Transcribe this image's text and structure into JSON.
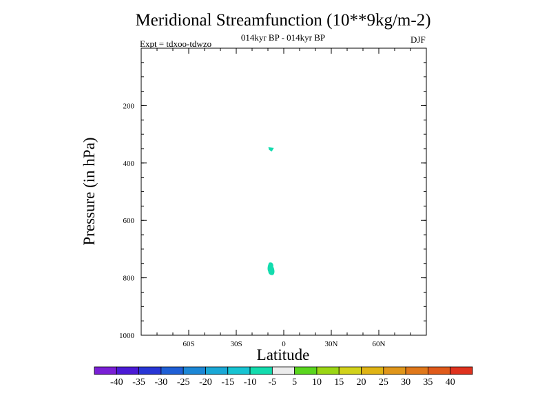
{
  "header": {
    "title": "Meridional Streamfunction (10**9kg/m-2)",
    "subtitle": "014kyr BP - 014kyr BP",
    "experiment": "Expt = tdxoo-tdwzo",
    "season": "DJF"
  },
  "chart_data": {
    "type": "contour",
    "xlabel": "Latitude",
    "ylabel": "Pressure (in hPa)",
    "xlim": [
      -90,
      90
    ],
    "ylim": [
      1000,
      0
    ],
    "x_ticks": [
      -60,
      -30,
      0,
      30,
      60
    ],
    "x_tick_labels": [
      "60S",
      "30S",
      "0",
      "30N",
      "60N"
    ],
    "y_ticks": [
      200,
      400,
      600,
      800,
      1000
    ],
    "y_tick_labels": [
      "200",
      "400",
      "600",
      "800",
      "1000"
    ],
    "contour_levels": [
      -40,
      -35,
      -30,
      -25,
      -20,
      -15,
      -10,
      -5,
      5,
      10,
      15,
      20,
      25,
      30,
      35,
      40
    ],
    "colorbar_colors": [
      "#7a1fd6",
      "#4b1ad6",
      "#2836d6",
      "#1f5fd6",
      "#1c87d6",
      "#1aa8d6",
      "#17c4d2",
      "#13dcae",
      "#ececec",
      "#5ad61e",
      "#9bd614",
      "#d2d21a",
      "#e0b414",
      "#e0961a",
      "#e0781a",
      "#e05a1a",
      "#e0321e"
    ],
    "regions": [
      {
        "category": "-10 to -5",
        "lat": -8,
        "pressure": [
          345,
          360
        ]
      },
      {
        "category": "-10 to -5",
        "lat": -8,
        "pressure": [
          745,
          790
        ]
      }
    ]
  }
}
